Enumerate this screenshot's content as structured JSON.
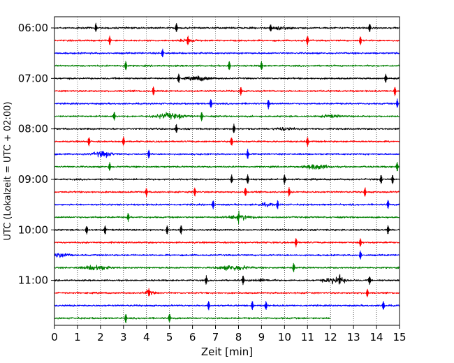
{
  "chart_data": {
    "type": "line",
    "title": "",
    "xlabel": "Zeit  [min]",
    "ylabel": "UTC (Lokalzeit = UTC + 02:00)",
    "xlim": [
      0,
      15
    ],
    "x_ticks": [
      0,
      1,
      2,
      3,
      4,
      5,
      6,
      7,
      8,
      9,
      10,
      11,
      12,
      13,
      14,
      15
    ],
    "x_tick_labels": [
      "0",
      "1",
      "2",
      "3",
      "4",
      "5",
      "6",
      "7",
      "8",
      "9",
      "10",
      "11",
      "12",
      "13",
      "14",
      "15"
    ],
    "y_tick_labels": [
      "06:00",
      "07:00",
      "08:00",
      "09:00",
      "10:00",
      "11:00"
    ],
    "grid": "vertical dotted",
    "trace_interval_min": 15,
    "trace_colors": [
      "#000000",
      "#ff0000",
      "#0000ff",
      "#008000"
    ],
    "traces": [
      {
        "start": "06:00",
        "end_min": 15,
        "spikes": [
          1.8,
          5.3,
          9.4,
          13.7
        ],
        "bursts": [
          [
            9.8,
            0.8,
            0.5
          ]
        ]
      },
      {
        "start": "06:15",
        "end_min": 15,
        "spikes": [
          2.4,
          5.8,
          11.0,
          13.3
        ],
        "bursts": [
          [
            5.8,
            0.6,
            0.4
          ]
        ]
      },
      {
        "start": "06:30",
        "end_min": 15,
        "spikes": [
          4.7
        ],
        "bursts": []
      },
      {
        "start": "06:45",
        "end_min": 15,
        "spikes": [
          3.1,
          7.6,
          9.0
        ],
        "bursts": []
      },
      {
        "start": "07:00",
        "end_min": 15,
        "spikes": [
          5.4,
          14.4
        ],
        "bursts": [
          [
            6.3,
            1.0,
            0.7
          ]
        ]
      },
      {
        "start": "07:15",
        "end_min": 15,
        "spikes": [
          4.3,
          8.1,
          14.8
        ],
        "bursts": []
      },
      {
        "start": "07:30",
        "end_min": 15,
        "spikes": [
          6.8,
          9.3,
          14.9
        ],
        "bursts": []
      },
      {
        "start": "07:45",
        "end_min": 15,
        "spikes": [
          2.6,
          6.4
        ],
        "bursts": [
          [
            5.0,
            1.1,
            1.0
          ],
          [
            12.0,
            0.8,
            0.4
          ]
        ]
      },
      {
        "start": "08:00",
        "end_min": 15,
        "spikes": [
          5.3,
          7.8
        ],
        "bursts": [
          [
            10.0,
            0.8,
            0.5
          ]
        ]
      },
      {
        "start": "08:15",
        "end_min": 15,
        "spikes": [
          1.5,
          3.0,
          7.7,
          11.0
        ],
        "bursts": []
      },
      {
        "start": "08:30",
        "end_min": 15,
        "spikes": [
          4.1,
          8.4
        ],
        "bursts": [
          [
            2.1,
            0.8,
            0.9
          ]
        ]
      },
      {
        "start": "08:45",
        "end_min": 15,
        "spikes": [
          2.4,
          14.9
        ],
        "bursts": [
          [
            11.4,
            0.9,
            0.9
          ]
        ]
      },
      {
        "start": "09:00",
        "end_min": 15,
        "spikes": [
          7.7,
          8.4,
          10.0,
          14.2,
          14.7
        ],
        "bursts": []
      },
      {
        "start": "09:15",
        "end_min": 15,
        "spikes": [
          4.0,
          6.1,
          8.3,
          10.2,
          13.5
        ],
        "bursts": []
      },
      {
        "start": "09:30",
        "end_min": 15,
        "spikes": [
          6.9,
          9.7,
          14.5
        ],
        "bursts": [
          [
            9.2,
            0.8,
            0.4
          ]
        ]
      },
      {
        "start": "09:45",
        "end_min": 15,
        "spikes": [
          3.2,
          8.0
        ],
        "bursts": [
          [
            8.1,
            1.0,
            0.8
          ]
        ]
      },
      {
        "start": "10:00",
        "end_min": 15,
        "spikes": [
          1.4,
          2.2,
          4.9,
          5.5,
          14.5
        ],
        "bursts": []
      },
      {
        "start": "10:15",
        "end_min": 15,
        "spikes": [
          10.5,
          13.3
        ],
        "bursts": []
      },
      {
        "start": "10:30",
        "end_min": 15,
        "spikes": [
          13.3
        ],
        "bursts": [
          [
            0.3,
            0.6,
            0.8
          ]
        ]
      },
      {
        "start": "10:45",
        "end_min": 15,
        "spikes": [
          10.4
        ],
        "bursts": [
          [
            1.8,
            1.0,
            0.8
          ],
          [
            7.8,
            1.2,
            0.8
          ]
        ]
      },
      {
        "start": "11:00",
        "end_min": 15,
        "spikes": [
          6.6,
          8.2,
          12.4,
          13.7
        ],
        "bursts": [
          [
            12.2,
            0.9,
            1.0
          ],
          [
            9.0,
            0.8,
            0.4
          ]
        ]
      },
      {
        "start": "11:15",
        "end_min": 15,
        "spikes": [
          4.1,
          13.6
        ],
        "bursts": [
          [
            4.1,
            0.5,
            0.5
          ]
        ]
      },
      {
        "start": "11:30",
        "end_min": 15,
        "spikes": [
          6.7,
          8.6,
          9.2,
          14.3
        ],
        "bursts": []
      },
      {
        "start": "11:45",
        "end_min": 12,
        "spikes": [
          3.1,
          5.0
        ],
        "bursts": []
      }
    ]
  }
}
